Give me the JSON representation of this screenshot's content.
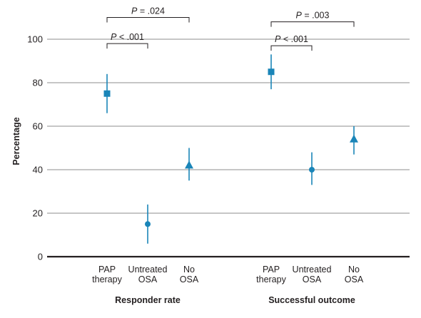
{
  "chart_data": {
    "type": "scatter",
    "ylabel": "Percentage",
    "ylim": [
      0,
      100
    ],
    "yticks": [
      0,
      20,
      40,
      60,
      80,
      100
    ],
    "grid": true,
    "marker_color": "#1a85b8",
    "groups": [
      {
        "label": "Responder rate",
        "points": [
          {
            "category_lines": [
              "PAP",
              "therapy"
            ],
            "value": 75,
            "ci": [
              66,
              84
            ],
            "marker": "square"
          },
          {
            "category_lines": [
              "Untreated",
              "OSA"
            ],
            "value": 15,
            "ci": [
              6,
              24
            ],
            "marker": "circle"
          },
          {
            "category_lines": [
              "No",
              "OSA"
            ],
            "value": 42,
            "ci": [
              35,
              50
            ],
            "marker": "triangle"
          }
        ],
        "comparisons": [
          {
            "from": 0,
            "to": 2,
            "label": "P = .024",
            "level": 110
          },
          {
            "from": 0,
            "to": 1,
            "label": "P < .001",
            "level": 98
          }
        ]
      },
      {
        "label": "Successful outcome",
        "points": [
          {
            "category_lines": [
              "PAP",
              "therapy"
            ],
            "value": 85,
            "ci": [
              77,
              93
            ],
            "marker": "square"
          },
          {
            "category_lines": [
              "Untreated",
              "OSA"
            ],
            "value": 40,
            "ci": [
              33,
              48
            ],
            "marker": "circle"
          },
          {
            "category_lines": [
              "No",
              "OSA"
            ],
            "value": 54,
            "ci": [
              47,
              60
            ],
            "marker": "triangle"
          }
        ],
        "comparisons": [
          {
            "from": 0,
            "to": 2,
            "label": "P = .003",
            "level": 108
          },
          {
            "from": 0,
            "to": 1,
            "label": "P < .001",
            "level": 97
          }
        ]
      }
    ]
  }
}
